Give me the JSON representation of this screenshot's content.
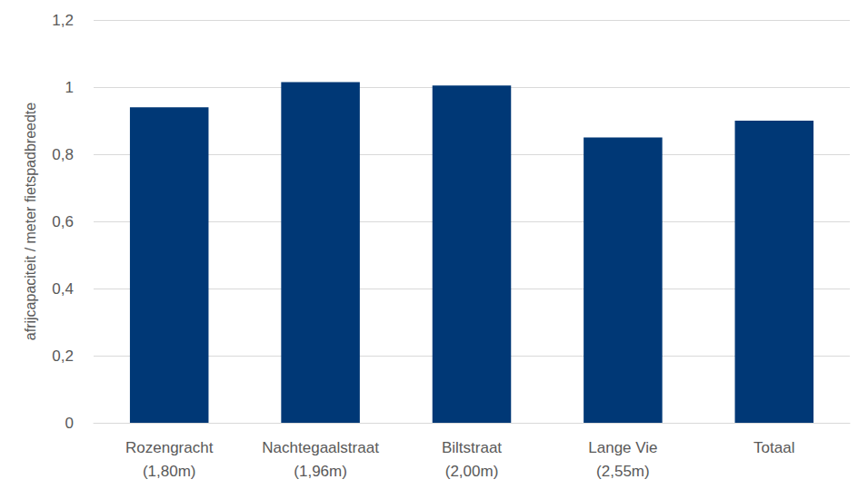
{
  "chart_data": {
    "type": "bar",
    "y_label": "afrijcapaciteit / meter fietspadbreedte",
    "categories": [
      "Rozengracht\n(1,80m)",
      "Nachtegaalstraat\n(1,96m)",
      "Biltstraat\n(2,00m)",
      "Lange Vie\n(2,55m)",
      "Totaal"
    ],
    "values": [
      0.94,
      1.015,
      1.005,
      0.85,
      0.9
    ],
    "color": "#003876",
    "ylim": [
      0,
      1.2
    ],
    "yticks": [
      0,
      {
        "value": 0.2,
        "label": "0,2"
      },
      {
        "value": 0.4,
        "label": "0,4"
      },
      {
        "value": 0.6,
        "label": "0,6"
      },
      {
        "value": 0.8,
        "label": "0,8"
      },
      1,
      {
        "value": 1.2,
        "label": "1,2"
      }
    ],
    "grid": true
  }
}
